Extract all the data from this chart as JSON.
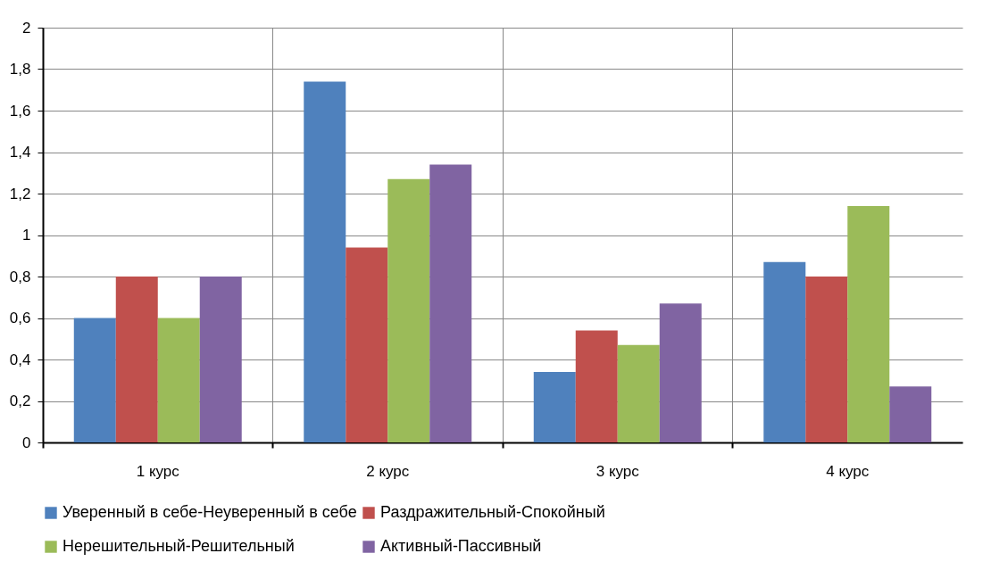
{
  "chart_data": {
    "type": "bar",
    "categories": [
      "1 курс",
      "2 курс",
      "3 курс",
      "4 курс"
    ],
    "series": [
      {
        "name": "Уверенный в себе-Неуверенный в себе",
        "color": "#4f81bd",
        "values": [
          0.6,
          1.74,
          0.34,
          0.87
        ]
      },
      {
        "name": "Раздражительный-Спокойный",
        "color": "#c0504d",
        "values": [
          0.8,
          0.94,
          0.54,
          0.8
        ]
      },
      {
        "name": "Нерешительный-Решительный",
        "color": "#9bbb59",
        "values": [
          0.6,
          1.27,
          0.47,
          1.14
        ]
      },
      {
        "name": "Активный-Пассивный",
        "color": "#8064a2",
        "values": [
          0.8,
          1.34,
          0.67,
          0.27
        ]
      }
    ],
    "ylim": [
      0,
      2
    ],
    "yticks": [
      0,
      {
        "value": 0.2,
        "label": "0,2"
      },
      {
        "value": 0.4,
        "label": "0,4"
      },
      {
        "value": 0.6,
        "label": "0,6"
      },
      {
        "value": 0.8,
        "label": "0,8"
      },
      1,
      {
        "value": 1.2,
        "label": "1,2"
      },
      {
        "value": 1.4,
        "label": "1,4"
      },
      {
        "value": 1.6,
        "label": "1,6"
      },
      {
        "value": 1.8,
        "label": "1,8"
      },
      2
    ],
    "grid": true,
    "legend": "bottom"
  }
}
